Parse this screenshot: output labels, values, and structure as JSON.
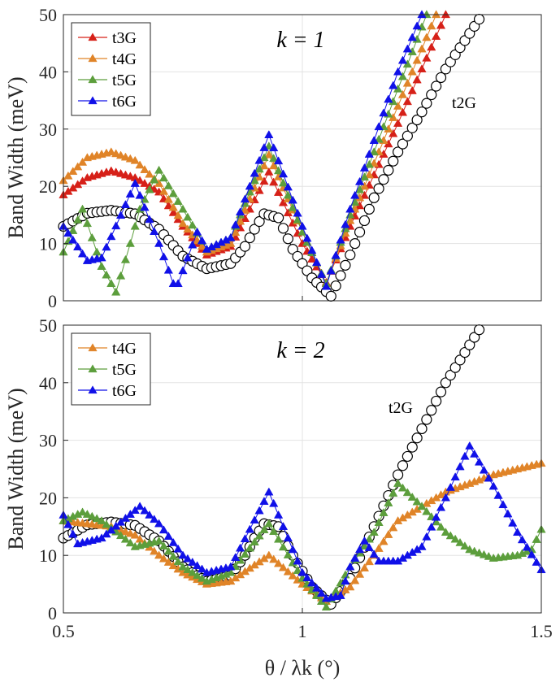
{
  "chart_data": [
    {
      "type": "line",
      "panel": "top",
      "annotation_k": "k = 1",
      "ylabel": "Band Width (meV)",
      "xlabel": "",
      "xlim": [
        0.5,
        1.5
      ],
      "ylim": [
        0,
        50
      ],
      "xticks": [
        "0.5",
        "1",
        "1.5"
      ],
      "yticks": [
        "0",
        "10",
        "20",
        "30",
        "40",
        "50"
      ],
      "grid": true,
      "legend_position": "top-left",
      "legend": [
        "t3G",
        "t4G",
        "t5G",
        "t6G"
      ],
      "series_annotation": "t2G",
      "series": [
        {
          "name": "t2G",
          "color": "#000000",
          "marker": "circle",
          "points": [
            [
              0.5,
              13
            ],
            [
              0.55,
              15.3
            ],
            [
              0.6,
              15.8
            ],
            [
              0.65,
              15.2
            ],
            [
              0.7,
              12.5
            ],
            [
              0.75,
              7.8
            ],
            [
              0.8,
              5.6
            ],
            [
              0.85,
              6.5
            ],
            [
              0.88,
              9.5
            ],
            [
              0.9,
              12.5
            ],
            [
              0.92,
              15.2
            ],
            [
              0.95,
              14.5
            ],
            [
              0.98,
              9
            ],
            [
              1.02,
              4
            ],
            [
              1.06,
              0.8
            ],
            [
              1.1,
              8
            ],
            [
              1.15,
              18
            ],
            [
              1.2,
              26
            ],
            [
              1.25,
              33
            ],
            [
              1.3,
              40.5
            ],
            [
              1.37,
              49.2
            ]
          ]
        },
        {
          "name": "t3G",
          "color": "#d62018",
          "marker": "triangle",
          "points": [
            [
              0.5,
              18.5
            ],
            [
              0.55,
              21.5
            ],
            [
              0.6,
              22.7
            ],
            [
              0.65,
              21.5
            ],
            [
              0.7,
              19
            ],
            [
              0.75,
              13
            ],
            [
              0.8,
              8
            ],
            [
              0.85,
              9.5
            ],
            [
              0.93,
              22.5
            ],
            [
              1,
              10
            ],
            [
              1.05,
              3.2
            ],
            [
              1.1,
              13
            ],
            [
              1.2,
              31
            ],
            [
              1.3,
              50
            ]
          ]
        },
        {
          "name": "t4G",
          "color": "#e08428",
          "marker": "triangle",
          "points": [
            [
              0.5,
              21
            ],
            [
              0.55,
              25
            ],
            [
              0.6,
              26
            ],
            [
              0.65,
              24.5
            ],
            [
              0.7,
              20.5
            ],
            [
              0.75,
              13.5
            ],
            [
              0.8,
              8.5
            ],
            [
              0.85,
              10
            ],
            [
              0.93,
              25.5
            ],
            [
              1,
              12
            ],
            [
              1.05,
              3
            ],
            [
              1.1,
              14
            ],
            [
              1.2,
              34
            ],
            [
              1.28,
              50
            ]
          ]
        },
        {
          "name": "t5G",
          "color": "#5c9e3c",
          "marker": "triangle",
          "points": [
            [
              0.5,
              8.5
            ],
            [
              0.54,
              16
            ],
            [
              0.58,
              6
            ],
            [
              0.61,
              1.5
            ],
            [
              0.64,
              10
            ],
            [
              0.66,
              16
            ],
            [
              0.7,
              22.8
            ],
            [
              0.75,
              16
            ],
            [
              0.8,
              9
            ],
            [
              0.85,
              11
            ],
            [
              0.93,
              27
            ],
            [
              1,
              12
            ],
            [
              1.05,
              3
            ],
            [
              1.1,
              15
            ],
            [
              1.2,
              37
            ],
            [
              1.26,
              50
            ]
          ]
        },
        {
          "name": "t6G",
          "color": "#1010e8",
          "marker": "triangle",
          "points": [
            [
              0.5,
              13
            ],
            [
              0.55,
              7
            ],
            [
              0.58,
              7.5
            ],
            [
              0.65,
              20.5
            ],
            [
              0.7,
              10
            ],
            [
              0.73,
              3
            ],
            [
              0.74,
              3
            ],
            [
              0.78,
              12
            ],
            [
              0.8,
              9
            ],
            [
              0.85,
              11
            ],
            [
              0.93,
              29
            ],
            [
              1,
              13
            ],
            [
              1.05,
              2.5
            ],
            [
              1.1,
              16
            ],
            [
              1.2,
              40
            ],
            [
              1.25,
              50
            ]
          ]
        }
      ]
    },
    {
      "type": "line",
      "panel": "bottom",
      "annotation_k": "k = 2",
      "ylabel": "Band Width (meV)",
      "xlabel": "θ / λk (°)",
      "xlim": [
        0.5,
        1.5
      ],
      "ylim": [
        0,
        50
      ],
      "xticks": [
        "0.5",
        "1",
        "1.5"
      ],
      "yticks": [
        "0",
        "10",
        "20",
        "30",
        "40",
        "50"
      ],
      "grid": true,
      "legend_position": "top-left",
      "legend": [
        "t4G",
        "t5G",
        "t6G"
      ],
      "series_annotation": "t2G",
      "series": [
        {
          "name": "t2G",
          "color": "#000000",
          "marker": "circle",
          "points": [
            [
              0.5,
              13
            ],
            [
              0.55,
              15.3
            ],
            [
              0.6,
              15.8
            ],
            [
              0.65,
              15.2
            ],
            [
              0.7,
              12.5
            ],
            [
              0.75,
              8
            ],
            [
              0.8,
              5.5
            ],
            [
              0.85,
              6.5
            ],
            [
              0.88,
              10
            ],
            [
              0.9,
              13
            ],
            [
              0.92,
              15.5
            ],
            [
              0.95,
              15
            ],
            [
              0.98,
              10
            ],
            [
              1.02,
              4.5
            ],
            [
              1.06,
              1.5
            ],
            [
              1.1,
              6
            ],
            [
              1.15,
              15
            ],
            [
              1.2,
              24
            ],
            [
              1.25,
              32
            ],
            [
              1.3,
              40
            ],
            [
              1.37,
              49.2
            ]
          ]
        },
        {
          "name": "t4G",
          "color": "#e08428",
          "marker": "triangle",
          "points": [
            [
              0.5,
              16
            ],
            [
              0.55,
              15.5
            ],
            [
              0.6,
              15
            ],
            [
              0.65,
              13.5
            ],
            [
              0.7,
              10
            ],
            [
              0.75,
              7
            ],
            [
              0.8,
              5
            ],
            [
              0.85,
              5.5
            ],
            [
              0.93,
              10
            ],
            [
              1,
              5
            ],
            [
              1.05,
              2
            ],
            [
              1.1,
              4.5
            ],
            [
              1.15,
              10
            ],
            [
              1.2,
              16
            ],
            [
              1.3,
              21
            ],
            [
              1.4,
              24
            ],
            [
              1.5,
              26
            ]
          ]
        },
        {
          "name": "t5G",
          "color": "#5c9e3c",
          "marker": "triangle",
          "points": [
            [
              0.5,
              16
            ],
            [
              0.54,
              17.5
            ],
            [
              0.58,
              16
            ],
            [
              0.65,
              11.5
            ],
            [
              0.7,
              12.5
            ],
            [
              0.75,
              8
            ],
            [
              0.8,
              5.5
            ],
            [
              0.85,
              7
            ],
            [
              0.93,
              15.5
            ],
            [
              1,
              6
            ],
            [
              1.05,
              1
            ],
            [
              1.1,
              8
            ],
            [
              1.15,
              14
            ],
            [
              1.2,
              22.5
            ],
            [
              1.25,
              18.5
            ],
            [
              1.3,
              14
            ],
            [
              1.35,
              11
            ],
            [
              1.4,
              9.5
            ],
            [
              1.45,
              10
            ],
            [
              1.48,
              11
            ],
            [
              1.5,
              14.5
            ]
          ]
        },
        {
          "name": "t6G",
          "color": "#1010e8",
          "marker": "triangle",
          "points": [
            [
              0.5,
              17
            ],
            [
              0.53,
              12
            ],
            [
              0.58,
              13
            ],
            [
              0.66,
              18.5
            ],
            [
              0.7,
              15.5
            ],
            [
              0.75,
              10
            ],
            [
              0.8,
              7
            ],
            [
              0.85,
              8
            ],
            [
              0.93,
              21
            ],
            [
              1,
              7
            ],
            [
              1.05,
              2.5
            ],
            [
              1.08,
              3
            ],
            [
              1.1,
              8
            ],
            [
              1.13,
              12.5
            ],
            [
              1.16,
              9
            ],
            [
              1.2,
              9
            ],
            [
              1.25,
              11.5
            ],
            [
              1.3,
              20
            ],
            [
              1.35,
              29
            ],
            [
              1.4,
              22
            ],
            [
              1.45,
              14
            ],
            [
              1.5,
              7.5
            ]
          ]
        }
      ]
    }
  ]
}
